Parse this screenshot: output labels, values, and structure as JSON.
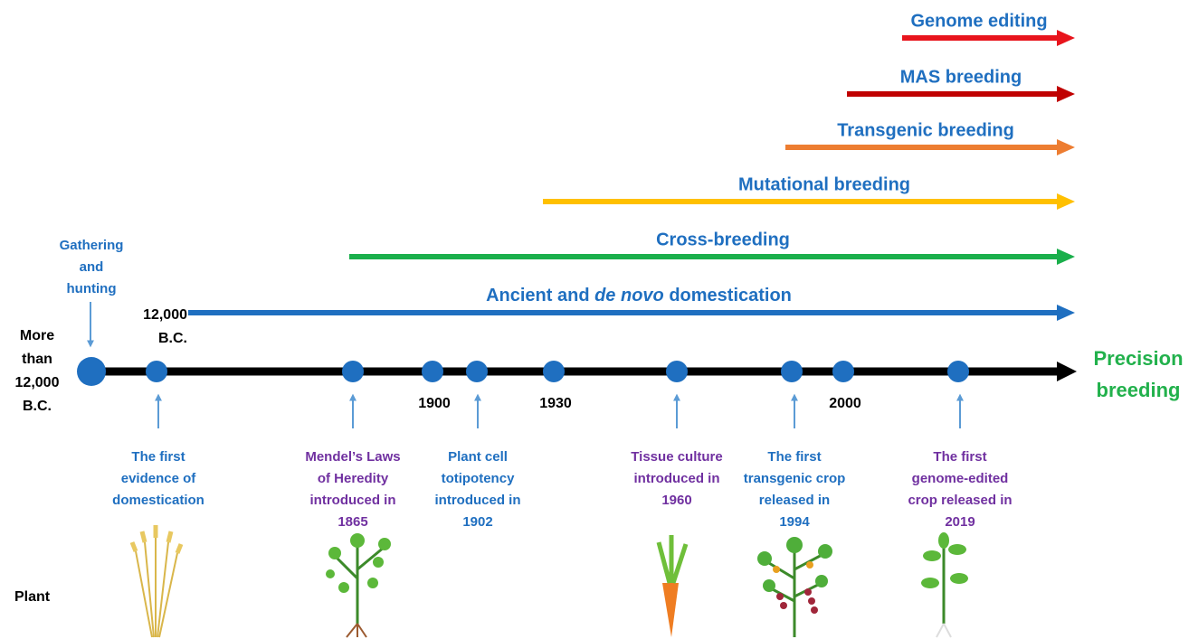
{
  "breeding_arrows": [
    {
      "label": "Genome editing",
      "color": "#e8141c"
    },
    {
      "label": "MAS breeding",
      "color": "#c00000"
    },
    {
      "label": "Transgenic breeding",
      "color": "#ed7d31"
    },
    {
      "label": "Mutational breeding",
      "color": "#ffc000"
    },
    {
      "label": "Cross-breeding",
      "color": "#1aaf4b"
    },
    {
      "label_parts": [
        "Ancient and ",
        "de novo",
        " domestication"
      ],
      "color": "#1f6fc0"
    }
  ],
  "timeline": {
    "start_note": [
      "Gathering",
      "and",
      "hunting"
    ],
    "start_label": [
      "More",
      "than",
      "12,000",
      "B.C."
    ],
    "marks": [
      [
        "12,000",
        "B.C."
      ],
      [
        "1900"
      ],
      [
        "1930"
      ],
      [
        "2000"
      ]
    ],
    "end_label": [
      "Precision",
      "breeding"
    ]
  },
  "events": [
    {
      "lines": [
        "The first",
        "evidence of",
        "domestication"
      ],
      "color": "#1f6fc0"
    },
    {
      "lines": [
        "Mendel’s Laws",
        "of Heredity",
        "introduced in",
        "1865"
      ],
      "color": "#7030a0"
    },
    {
      "lines": [
        "Plant cell",
        "totipotency",
        "introduced in",
        "1902"
      ],
      "color": "#1f6fc0"
    },
    {
      "lines": [
        "Tissue culture",
        "introduced in",
        "1960"
      ],
      "color": "#7030a0"
    },
    {
      "lines": [
        "The first",
        "transgenic crop",
        "released in",
        "1994"
      ],
      "color": "#1f6fc0"
    },
    {
      "lines": [
        "The first",
        "genome-edited",
        "crop released in",
        "2019"
      ],
      "color": "#7030a0"
    }
  ],
  "row_label": "Plant"
}
